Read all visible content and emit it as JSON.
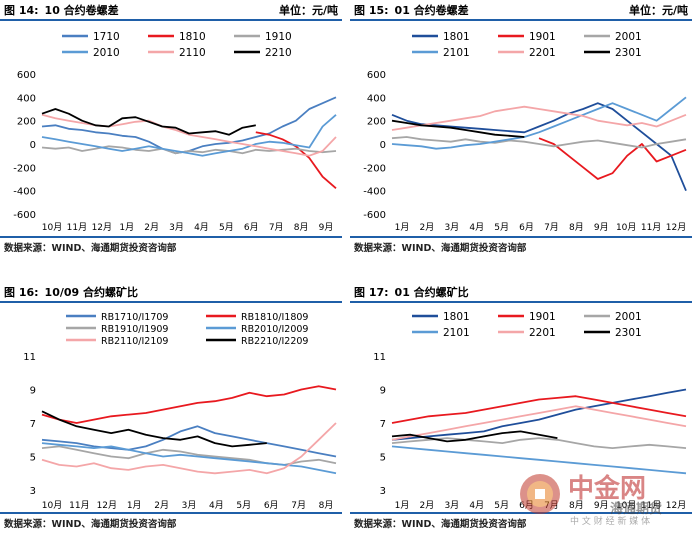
{
  "panels": [
    {
      "title_prefix": "图 14:",
      "title": "10 合约卷螺差",
      "unit": "单位：元/吨",
      "footer": "数据来源：WIND、海通期货投资咨询部"
    },
    {
      "title_prefix": "图 15:",
      "title": "01 合约卷螺差",
      "unit": "单位：元/吨",
      "footer": "数据来源：WIND、海通期货投资咨询部"
    },
    {
      "title_prefix": "图 16:",
      "title": "10/09 合约螺矿比",
      "unit": "",
      "footer": "数据来源：WIND、海通期货投资咨询部"
    },
    {
      "title_prefix": "图 17:",
      "title": "01 合约螺矿比",
      "unit": "",
      "footer": "数据来源：WIND、海通期货投资咨询部"
    }
  ],
  "watermark": {
    "cn": "中金网",
    "sub": "海通期货",
    "sub2": "中 文 财 经 新 媒 体"
  },
  "chart_data": [
    {
      "type": "line",
      "ylim": [
        -600,
        600
      ],
      "yticks": [
        600,
        400,
        200,
        0,
        -200,
        -400,
        -600
      ],
      "x_labels": [
        "10月",
        "11月",
        "12月",
        "1月",
        "2月",
        "3月",
        "4月",
        "5月",
        "6月",
        "7月",
        "8月",
        "9月"
      ],
      "series": [
        {
          "name": "1710",
          "color": "#4a7fc1",
          "values": [
            150,
            160,
            130,
            120,
            100,
            90,
            70,
            60,
            20,
            -40,
            -80,
            -60,
            -20,
            0,
            10,
            30,
            60,
            90,
            150,
            200,
            300,
            350,
            400
          ]
        },
        {
          "name": "1810",
          "color": "#e8191f",
          "values": [
            null,
            null,
            null,
            null,
            null,
            null,
            null,
            null,
            null,
            null,
            null,
            null,
            null,
            null,
            null,
            null,
            100,
            80,
            40,
            -20,
            -120,
            -280,
            -380
          ]
        },
        {
          "name": "1910",
          "color": "#a6a6a6",
          "values": [
            -30,
            -40,
            -30,
            -60,
            -40,
            -20,
            -30,
            -50,
            -60,
            -40,
            -80,
            -60,
            -70,
            -50,
            -60,
            -80,
            -50,
            -60,
            -50,
            -40,
            -60,
            -70,
            -60
          ]
        },
        {
          "name": "2010",
          "color": "#5b9bd5",
          "values": [
            60,
            40,
            20,
            0,
            -20,
            -40,
            -60,
            -40,
            -20,
            -40,
            -60,
            -80,
            -100,
            -80,
            -60,
            -40,
            0,
            20,
            10,
            -10,
            -30,
            150,
            250
          ]
        },
        {
          "name": "2110",
          "color": "#f4a6a8",
          "values": [
            250,
            220,
            200,
            180,
            160,
            150,
            170,
            190,
            200,
            150,
            120,
            80,
            60,
            40,
            20,
            0,
            -20,
            -40,
            -60,
            -80,
            -100,
            -60,
            60
          ]
        },
        {
          "name": "2210",
          "color": "#000000",
          "values": [
            260,
            300,
            260,
            200,
            160,
            150,
            220,
            230,
            190,
            150,
            140,
            90,
            100,
            110,
            80,
            140,
            160,
            null,
            null,
            null,
            null,
            null,
            null
          ]
        }
      ]
    },
    {
      "type": "line",
      "ylim": [
        -600,
        600
      ],
      "yticks": [
        600,
        400,
        200,
        0,
        -200,
        -400,
        -600
      ],
      "x_labels": [
        "1月",
        "2月",
        "3月",
        "4月",
        "5月",
        "6月",
        "7月",
        "8月",
        "9月",
        "10月",
        "11月",
        "12月"
      ],
      "series": [
        {
          "name": "1801",
          "color": "#1f4e9a",
          "values": [
            250,
            200,
            170,
            160,
            150,
            140,
            130,
            120,
            110,
            100,
            150,
            200,
            260,
            300,
            350,
            300,
            200,
            100,
            0,
            -100,
            -400
          ]
        },
        {
          "name": "1901",
          "color": "#e8191f",
          "values": [
            null,
            null,
            null,
            null,
            null,
            null,
            null,
            null,
            null,
            null,
            50,
            0,
            -100,
            -200,
            -300,
            -250,
            -100,
            0,
            -150,
            -100,
            -50
          ]
        },
        {
          "name": "2001",
          "color": "#a6a6a6",
          "values": [
            50,
            60,
            40,
            30,
            20,
            40,
            20,
            10,
            30,
            20,
            0,
            -20,
            0,
            20,
            30,
            10,
            -10,
            -30,
            0,
            20,
            40
          ]
        },
        {
          "name": "2101",
          "color": "#5b9bd5",
          "values": [
            0,
            -10,
            -20,
            -40,
            -30,
            -10,
            0,
            20,
            40,
            60,
            100,
            150,
            200,
            250,
            300,
            350,
            300,
            250,
            200,
            300,
            400
          ]
        },
        {
          "name": "2201",
          "color": "#f4a6a8",
          "values": [
            120,
            140,
            160,
            180,
            200,
            220,
            240,
            280,
            300,
            320,
            300,
            280,
            260,
            240,
            200,
            180,
            160,
            180,
            150,
            200,
            250
          ]
        },
        {
          "name": "2301",
          "color": "#000000",
          "values": [
            200,
            180,
            160,
            150,
            140,
            120,
            100,
            80,
            70,
            60,
            null,
            null,
            null,
            null,
            null,
            null,
            null,
            null,
            null,
            null,
            null
          ]
        }
      ]
    },
    {
      "type": "line",
      "ylim": [
        3,
        11
      ],
      "yticks": [
        11,
        9,
        7,
        5,
        3
      ],
      "x_labels": [
        "10月",
        "11月",
        "12月",
        "1月",
        "2月",
        "3月",
        "4月",
        "5月",
        "6月",
        "7月",
        "8月"
      ],
      "series": [
        {
          "name": "RB1710/I1709",
          "color": "#4a7fc1",
          "values": [
            6.0,
            5.9,
            5.8,
            5.6,
            5.5,
            5.4,
            5.6,
            6.0,
            6.5,
            6.8,
            6.4,
            6.2,
            6.0,
            5.8,
            5.6,
            5.4,
            5.2,
            5.0
          ]
        },
        {
          "name": "RB1810/I1809",
          "color": "#e8191f",
          "values": [
            7.5,
            7.2,
            7.0,
            7.2,
            7.4,
            7.5,
            7.6,
            7.8,
            8.0,
            8.2,
            8.3,
            8.5,
            8.8,
            8.6,
            8.7,
            9.0,
            9.2,
            9.0
          ]
        },
        {
          "name": "RB1910/I1909",
          "color": "#a6a6a6",
          "values": [
            5.5,
            5.6,
            5.4,
            5.2,
            5.0,
            4.9,
            5.2,
            5.4,
            5.3,
            5.1,
            5.0,
            4.9,
            4.8,
            4.6,
            4.5,
            4.7,
            4.8,
            4.6
          ]
        },
        {
          "name": "RB2010/I2009",
          "color": "#5b9bd5",
          "values": [
            5.8,
            5.7,
            5.6,
            5.5,
            5.6,
            5.4,
            5.2,
            5.0,
            5.1,
            5.0,
            4.9,
            4.8,
            4.7,
            4.6,
            4.5,
            4.4,
            4.2,
            4.0
          ]
        },
        {
          "name": "RB2110/I2109",
          "color": "#f4a6a8",
          "values": [
            4.8,
            4.5,
            4.4,
            4.6,
            4.3,
            4.2,
            4.4,
            4.5,
            4.3,
            4.1,
            4.0,
            4.1,
            4.2,
            4.0,
            4.3,
            5.0,
            6.0,
            7.0
          ]
        },
        {
          "name": "RB2210/I2209",
          "color": "#000000",
          "values": [
            7.7,
            7.2,
            6.8,
            6.6,
            6.4,
            6.6,
            6.3,
            6.1,
            6.0,
            6.2,
            5.8,
            5.6,
            5.7,
            5.8,
            null,
            null,
            null,
            null
          ]
        }
      ]
    },
    {
      "type": "line",
      "ylim": [
        3,
        11
      ],
      "yticks": [
        11,
        9,
        7,
        5,
        3
      ],
      "x_labels": [
        "1月",
        "2月",
        "3月",
        "4月",
        "5月",
        "6月",
        "7月",
        "8月",
        "9月",
        "10月",
        "11月",
        "12月"
      ],
      "series": [
        {
          "name": "1801",
          "color": "#1f4e9a",
          "values": [
            6.0,
            6.1,
            6.2,
            6.3,
            6.4,
            6.5,
            6.8,
            7.0,
            7.2,
            7.5,
            7.8,
            8.0,
            8.2,
            8.4,
            8.6,
            8.8,
            9.0
          ]
        },
        {
          "name": "1901",
          "color": "#e8191f",
          "values": [
            7.0,
            7.2,
            7.4,
            7.5,
            7.6,
            7.8,
            8.0,
            8.2,
            8.4,
            8.5,
            8.6,
            8.4,
            8.2,
            8.0,
            7.8,
            7.6,
            7.4
          ]
        },
        {
          "name": "2001",
          "color": "#a6a6a6",
          "values": [
            5.8,
            5.9,
            6.0,
            6.1,
            6.0,
            5.9,
            5.8,
            6.0,
            6.1,
            6.0,
            5.8,
            5.6,
            5.5,
            5.6,
            5.7,
            5.6,
            5.5
          ]
        },
        {
          "name": "2101",
          "color": "#5b9bd5",
          "values": [
            5.6,
            5.5,
            5.4,
            5.3,
            5.2,
            5.1,
            5.0,
            4.9,
            4.8,
            4.7,
            4.6,
            4.5,
            4.4,
            4.3,
            4.2,
            4.1,
            4.0
          ]
        },
        {
          "name": "2201",
          "color": "#f4a6a8",
          "values": [
            6.0,
            6.2,
            6.4,
            6.6,
            6.8,
            7.0,
            7.2,
            7.4,
            7.6,
            7.8,
            8.0,
            7.8,
            7.6,
            7.4,
            7.2,
            7.0,
            6.8
          ]
        },
        {
          "name": "2301",
          "color": "#000000",
          "values": [
            6.2,
            6.3,
            6.1,
            5.9,
            6.0,
            6.2,
            6.4,
            6.5,
            6.3,
            6.1,
            null,
            null,
            null,
            null,
            null,
            null,
            null
          ]
        }
      ]
    }
  ]
}
